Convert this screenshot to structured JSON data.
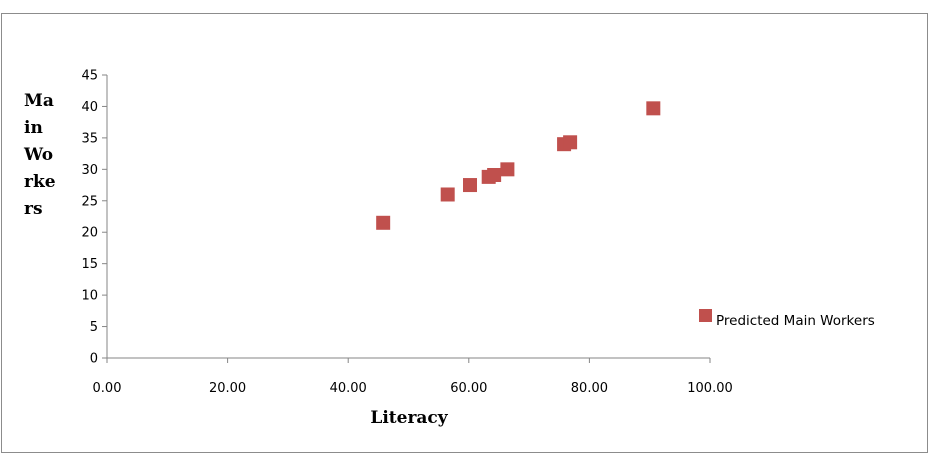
{
  "chart_data": {
    "type": "scatter",
    "title": "",
    "xlabel": "Literacy",
    "ylabel_lines": [
      "Ma",
      "in",
      "Wo",
      "rke",
      "rs"
    ],
    "xlim": [
      0,
      100
    ],
    "ylim": [
      0,
      45
    ],
    "x_ticks": [
      "0.00",
      "20.00",
      "40.00",
      "60.00",
      "80.00",
      "100.00"
    ],
    "y_ticks": [
      "0",
      "5",
      "10",
      "15",
      "20",
      "25",
      "30",
      "35",
      "40",
      "45"
    ],
    "grid": false,
    "legend_position": "right",
    "series": [
      {
        "name": "Predicted Main Workers",
        "color": "#c0504d",
        "marker": "square",
        "points": [
          {
            "x": 45.8,
            "y": 21.5
          },
          {
            "x": 56.5,
            "y": 26.0
          },
          {
            "x": 60.2,
            "y": 27.5
          },
          {
            "x": 63.3,
            "y": 28.8
          },
          {
            "x": 64.2,
            "y": 29.1
          },
          {
            "x": 66.4,
            "y": 30.0
          },
          {
            "x": 75.8,
            "y": 34.0
          },
          {
            "x": 76.8,
            "y": 34.3
          },
          {
            "x": 90.6,
            "y": 39.7
          }
        ]
      }
    ]
  }
}
